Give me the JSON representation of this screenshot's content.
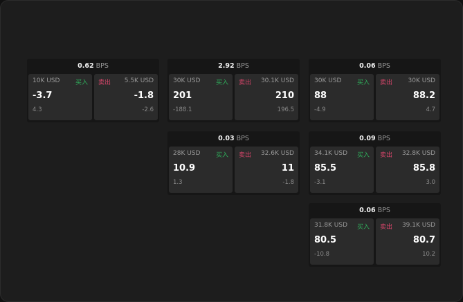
{
  "cards": [
    {
      "bps": "0.62",
      "unit": "BPS",
      "buy": {
        "size": "10K USD",
        "label": "买入",
        "price": "-3.7",
        "change": "4.3"
      },
      "sell": {
        "size": "5.5K USD",
        "label": "卖出",
        "price": "-1.8",
        "change": "-2.6"
      }
    },
    {
      "bps": "2.92",
      "unit": "BPS",
      "buy": {
        "size": "30K USD",
        "label": "买入",
        "price": "201",
        "change": "-188.1"
      },
      "sell": {
        "size": "30.1K USD",
        "label": "卖出",
        "price": "210",
        "change": "196.5"
      }
    },
    {
      "bps": "0.06",
      "unit": "BPS",
      "buy": {
        "size": "30K USD",
        "label": "买入",
        "price": "88",
        "change": "-4.9"
      },
      "sell": {
        "size": "30K USD",
        "label": "卖出",
        "price": "88.2",
        "change": "4.7"
      }
    },
    {
      "bps": "0.03",
      "unit": "BPS",
      "buy": {
        "size": "28K USD",
        "label": "买入",
        "price": "10.9",
        "change": "1.3"
      },
      "sell": {
        "size": "32.6K USD",
        "label": "卖出",
        "price": "11",
        "change": "-1.8"
      }
    },
    {
      "bps": "0.09",
      "unit": "BPS",
      "buy": {
        "size": "34.1K USD",
        "label": "买入",
        "price": "85.5",
        "change": "-3.1"
      },
      "sell": {
        "size": "32.8K USD",
        "label": "卖出",
        "price": "85.8",
        "change": "3.0"
      }
    },
    {
      "bps": "0.06",
      "unit": "BPS",
      "buy": {
        "size": "31.8K USD",
        "label": "买入",
        "price": "80.5",
        "change": "-10.8"
      },
      "sell": {
        "size": "39.1K USD",
        "label": "卖出",
        "price": "80.7",
        "change": "10.2"
      }
    }
  ],
  "colors": {
    "buy": "#2fae5b",
    "sell": "#d6456a"
  }
}
